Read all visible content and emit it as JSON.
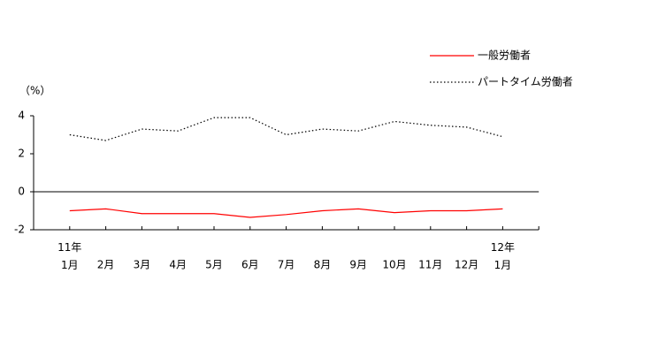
{
  "chart_data": {
    "type": "line",
    "y_label": "（%）",
    "categories": [
      "11年\n1月",
      "2月",
      "3月",
      "4月",
      "5月",
      "6月",
      "7月",
      "8月",
      "9月",
      "10月",
      "11月",
      "12月",
      "12年\n1月"
    ],
    "series": [
      {
        "name": "一般労働者",
        "color": "#ff0000",
        "dash": "solid",
        "values": [
          -1.0,
          -0.9,
          -1.15,
          -1.15,
          -1.15,
          -1.35,
          -1.2,
          -1.0,
          -0.9,
          -1.1,
          -1.0,
          -1.0,
          -0.9
        ]
      },
      {
        "name": "パートタイム労働者",
        "color": "#000000",
        "dash": "dotted",
        "values": [
          3.0,
          2.7,
          3.3,
          3.2,
          3.9,
          3.9,
          3.0,
          3.3,
          3.2,
          3.7,
          3.5,
          3.4,
          2.9
        ]
      }
    ],
    "ylim": [
      -2,
      4
    ],
    "yticks": [
      -2,
      0,
      2,
      4
    ],
    "legend": "top-right"
  }
}
